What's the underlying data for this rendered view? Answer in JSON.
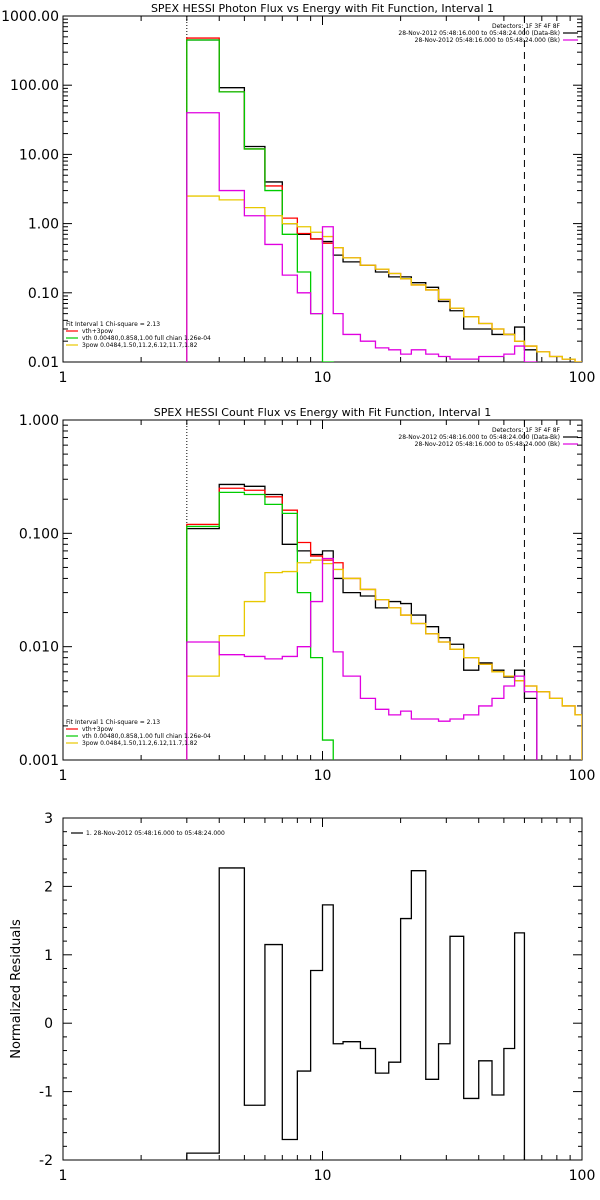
{
  "chart_data": [
    {
      "type": "line",
      "title": "SPEX HESSI Photon Flux vs Energy with Fit Function, Interval 1",
      "xlabel": "",
      "ylabel": "",
      "x_scale": "log",
      "y_scale": "log",
      "xlim": [
        1,
        100
      ],
      "ylim": [
        0.01,
        1000
      ],
      "x_tick_labels": [
        "1",
        "10",
        "100"
      ],
      "y_tick_labels": [
        "0.01",
        "0.10",
        "1.00",
        "10.00",
        "100.00",
        "1000.00"
      ],
      "header_lines": [
        "Detectors: 1F 3F 4F 8F",
        "28-Nov-2012 05:48:16.000 to 05:48:24.000 (Data-Bk)",
        "28-Nov-2012 05:48:16.000 to 05:48:24.000 (Bk)"
      ],
      "legend_position": "top-right",
      "fit_lines": [
        "Fit Interval 1   Chi-square = 2.13",
        "vth+3pow",
        "vth 0.00480,0.858,1.00  full chian 1.26e-04",
        "3pow 0.0484,1.50,11.2,6.12,11.7,1.82"
      ],
      "fit_legend_position": "bottom-left",
      "vlines": [
        {
          "x": 3,
          "style": "dotted"
        },
        {
          "x": 60,
          "style": "dashed"
        }
      ],
      "colors": {
        "data": "#000000",
        "total": "#ff0000",
        "vth": "#00cc00",
        "pow": "#e8c800",
        "bk": "#e000e0"
      },
      "edges": [
        3,
        4,
        5,
        6,
        7,
        8,
        9,
        10,
        11,
        12,
        14,
        16,
        18,
        20,
        22,
        25,
        28,
        31,
        35,
        40,
        45,
        50,
        55,
        60,
        67,
        75,
        84,
        94,
        100
      ],
      "series": [
        {
          "name": "Data-Bk",
          "key": "data",
          "values": [
            450,
            92,
            13,
            4.0,
            1.0,
            0.7,
            0.6,
            0.55,
            0.35,
            0.28,
            0.25,
            0.2,
            0.17,
            0.17,
            0.14,
            0.12,
            0.075,
            0.055,
            0.03,
            0.03,
            0.025,
            0.025,
            0.032,
            0.015,
            null,
            null,
            null,
            null
          ]
        },
        {
          "key": "total",
          "values": [
            480,
            80,
            12,
            3.5,
            1.2,
            0.72,
            0.6,
            0.52,
            0.45,
            0.32,
            0.25,
            0.22,
            0.19,
            0.16,
            0.13,
            0.11,
            0.08,
            0.06,
            0.045,
            0.036,
            0.03,
            0.025,
            0.02,
            0.017,
            0.014,
            0.012,
            0.011,
            0.01
          ]
        },
        {
          "key": "vth",
          "values": [
            450,
            80,
            12,
            3.0,
            0.7,
            0.2,
            0.05,
            0.01,
            null,
            null,
            null,
            null,
            null,
            null,
            null,
            null,
            null,
            null,
            null,
            null,
            null,
            null,
            null,
            null,
            null,
            null,
            null,
            null
          ]
        },
        {
          "key": "pow",
          "values": [
            2.5,
            2.2,
            1.7,
            1.3,
            1.0,
            0.9,
            0.75,
            0.65,
            0.45,
            0.32,
            0.25,
            0.22,
            0.19,
            0.16,
            0.13,
            0.11,
            0.08,
            0.06,
            0.045,
            0.036,
            0.03,
            0.025,
            0.02,
            0.017,
            0.014,
            0.012,
            0.011,
            0.01
          ]
        },
        {
          "name": "Bk",
          "key": "bk",
          "values": [
            40,
            3.0,
            1.3,
            0.5,
            0.18,
            0.1,
            0.05,
            0.9,
            0.05,
            0.025,
            0.02,
            0.016,
            0.015,
            0.013,
            0.015,
            0.013,
            0.012,
            0.011,
            0.011,
            0.012,
            0.012,
            0.013,
            0.017,
            0.01,
            null,
            null,
            null,
            null
          ]
        }
      ]
    },
    {
      "type": "line",
      "title": "SPEX HESSI Count Flux vs Energy with Fit Function, Interval 1",
      "xlabel": "",
      "ylabel": "",
      "x_scale": "log",
      "y_scale": "log",
      "xlim": [
        1,
        100
      ],
      "ylim": [
        0.001,
        1
      ],
      "x_tick_labels": [
        "1",
        "10",
        "100"
      ],
      "y_tick_labels": [
        "0.001",
        "0.010",
        "0.100",
        "1.000"
      ],
      "header_lines": [
        "Detectors: 1F 3F 4F 8F",
        "28-Nov-2012 05:48:16.000 to 05:48:24.000 (Data-Bk)",
        "28-Nov-2012 05:48:16.000 to 05:48:24.000 (Bk)"
      ],
      "legend_position": "top-right",
      "fit_lines": [
        "Fit Interval 1   Chi-square = 2.13",
        "vth+3pow",
        "vth 0.00480,0.858,1.00  full chian 1.26e-04",
        "3pow 0.0484,1.50,11.2,6.12,11.7,1.82"
      ],
      "fit_legend_position": "bottom-left",
      "vlines": [
        {
          "x": 3,
          "style": "dotted"
        },
        {
          "x": 60,
          "style": "dashed"
        }
      ],
      "colors": {
        "data": "#000000",
        "total": "#ff0000",
        "vth": "#00cc00",
        "pow": "#e8c800",
        "bk": "#e000e0"
      },
      "edges": [
        3,
        4,
        5,
        6,
        7,
        8,
        9,
        10,
        11,
        12,
        14,
        16,
        18,
        20,
        22,
        25,
        28,
        31,
        35,
        40,
        45,
        50,
        55,
        60,
        67,
        75,
        84,
        94,
        100
      ],
      "series": [
        {
          "name": "Data-Bk",
          "key": "data",
          "values": [
            0.11,
            0.27,
            0.26,
            0.22,
            0.08,
            0.07,
            0.065,
            0.07,
            0.04,
            0.03,
            0.028,
            0.022,
            0.025,
            0.024,
            0.019,
            0.015,
            0.012,
            0.0105,
            0.0062,
            0.0072,
            0.0062,
            0.0054,
            0.0062,
            0.0035,
            null,
            null,
            null,
            null
          ]
        },
        {
          "key": "total",
          "values": [
            0.12,
            0.25,
            0.24,
            0.21,
            0.16,
            0.083,
            0.063,
            0.058,
            0.055,
            0.04,
            0.032,
            0.026,
            0.022,
            0.019,
            0.016,
            0.013,
            0.011,
            0.0095,
            0.008,
            0.007,
            0.006,
            0.0055,
            0.005,
            0.0045,
            0.004,
            0.0035,
            0.003,
            0.0025
          ]
        },
        {
          "key": "vth",
          "values": [
            0.115,
            0.23,
            0.22,
            0.18,
            0.15,
            0.03,
            0.008,
            0.0015,
            null,
            null,
            null,
            null,
            null,
            null,
            null,
            null,
            null,
            null,
            null,
            null,
            null,
            null,
            null,
            null,
            null,
            null,
            null,
            null
          ]
        },
        {
          "key": "pow",
          "values": [
            0.0055,
            0.0125,
            0.025,
            0.045,
            0.046,
            0.055,
            0.058,
            0.054,
            0.048,
            0.04,
            0.032,
            0.026,
            0.022,
            0.019,
            0.016,
            0.013,
            0.011,
            0.0095,
            0.008,
            0.007,
            0.006,
            0.0055,
            0.005,
            0.0045,
            0.004,
            0.0035,
            0.003,
            0.0025
          ]
        },
        {
          "name": "Bk",
          "key": "bk",
          "values": [
            0.011,
            0.0085,
            0.0082,
            0.0078,
            0.0082,
            0.01,
            0.025,
            0.06,
            0.009,
            0.0055,
            0.0035,
            0.0028,
            0.0025,
            0.0027,
            0.0023,
            0.0023,
            0.0022,
            0.0023,
            0.0025,
            0.003,
            0.0035,
            0.0045,
            0.0055,
            0.004,
            null,
            null,
            null,
            null
          ]
        }
      ]
    },
    {
      "type": "line",
      "title": "",
      "xlabel": "",
      "ylabel": "Normalized Residuals",
      "x_scale": "log",
      "y_scale": "linear",
      "xlim": [
        1,
        100
      ],
      "ylim": [
        -2,
        3
      ],
      "x_tick_labels": [
        "1",
        "10",
        "100"
      ],
      "y_tick_labels": [
        "-2",
        "-1",
        "0",
        "1",
        "2",
        "3"
      ],
      "legend_position": "top-left",
      "legend_text": "1. 28-Nov-2012 05:48:16.000 to 05:48:24.000",
      "edges": [
        3,
        4,
        5,
        6,
        7,
        8,
        9,
        10,
        11,
        12,
        14,
        16,
        18,
        20,
        22,
        25,
        28,
        31,
        35,
        40,
        45,
        50,
        55,
        60
      ],
      "series": [
        {
          "key": "residuals",
          "values": [
            -1.9,
            2.27,
            -1.2,
            1.15,
            -1.7,
            -0.7,
            0.77,
            1.73,
            -0.3,
            -0.27,
            -0.37,
            -0.73,
            -0.57,
            1.53,
            2.23,
            -0.82,
            -0.3,
            1.27,
            -1.1,
            -0.55,
            -1.05,
            -0.37,
            1.32
          ]
        }
      ]
    }
  ]
}
